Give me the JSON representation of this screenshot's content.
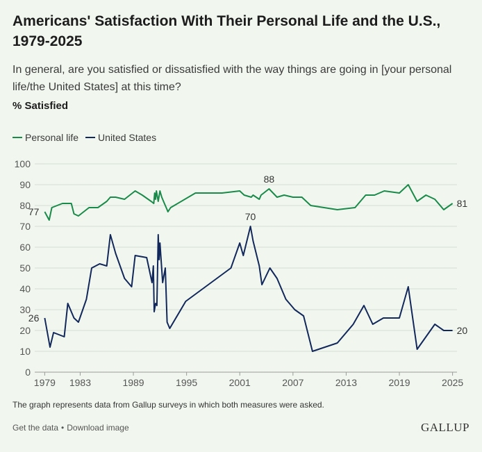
{
  "title": "Americans' Satisfaction With Their Personal Life and the U.S., 1979-2025",
  "subtitle": "In general, are you satisfied or dissatisfied with the way things are going in [your personal life/the United States] at this time?",
  "measure": "% Satisfied",
  "footnote": "The graph represents data from Gallup surveys in which both measures were asked.",
  "footer": {
    "get_data": "Get the data",
    "separator": "•",
    "download": "Download image",
    "brand": "GALLUP"
  },
  "colors": {
    "personal": "#1a8a4a",
    "us": "#12275a",
    "grid": "#d4dcd3",
    "axis": "#9a9a9a"
  },
  "chart_data": {
    "type": "line",
    "title": "Americans' Satisfaction With Their Personal Life and the U.S., 1979-2025",
    "ylabel": "% Satisfied",
    "xlabel": "",
    "xlim": [
      1978.5,
      2025.5
    ],
    "ylim": [
      0,
      100
    ],
    "yticks": [
      0,
      10,
      20,
      30,
      40,
      50,
      60,
      70,
      80,
      90,
      100
    ],
    "xticks": [
      1979,
      1983,
      1989,
      1995,
      2001,
      2007,
      2013,
      2019,
      2025
    ],
    "legend": "top-left",
    "series": [
      {
        "name": "Personal life",
        "color_key": "personal",
        "points": [
          [
            1979.0,
            77
          ],
          [
            1979.5,
            73
          ],
          [
            1979.8,
            79
          ],
          [
            1981.0,
            81
          ],
          [
            1982.0,
            81
          ],
          [
            1982.3,
            76
          ],
          [
            1982.8,
            75
          ],
          [
            1984.0,
            79
          ],
          [
            1985.0,
            79
          ],
          [
            1986.0,
            82
          ],
          [
            1986.4,
            84
          ],
          [
            1987.0,
            84
          ],
          [
            1988.0,
            83
          ],
          [
            1989.2,
            87
          ],
          [
            1990.0,
            85
          ],
          [
            1991.0,
            82
          ],
          [
            1991.3,
            81
          ],
          [
            1991.4,
            86
          ],
          [
            1991.5,
            83
          ],
          [
            1991.6,
            87
          ],
          [
            1991.8,
            82
          ],
          [
            1992.0,
            87
          ],
          [
            1992.2,
            84
          ],
          [
            1992.5,
            81
          ],
          [
            1992.8,
            78
          ],
          [
            1992.9,
            77
          ],
          [
            1993.2,
            79
          ],
          [
            1996.0,
            86
          ],
          [
            1999.0,
            86
          ],
          [
            2001.0,
            87
          ],
          [
            2001.5,
            85
          ],
          [
            2002.3,
            84
          ],
          [
            2002.5,
            85
          ],
          [
            2003.2,
            83
          ],
          [
            2003.4,
            85
          ],
          [
            2004.3,
            88
          ],
          [
            2005.2,
            84
          ],
          [
            2006.0,
            85
          ],
          [
            2007.0,
            84
          ],
          [
            2008.0,
            84
          ],
          [
            2009.0,
            80
          ],
          [
            2012.0,
            78
          ],
          [
            2014.0,
            79
          ],
          [
            2015.2,
            85
          ],
          [
            2016.2,
            85
          ],
          [
            2017.3,
            87
          ],
          [
            2019.0,
            86
          ],
          [
            2020.0,
            90
          ],
          [
            2021.0,
            82
          ],
          [
            2022.0,
            85
          ],
          [
            2023.0,
            83
          ],
          [
            2024.0,
            78
          ],
          [
            2025.0,
            81
          ]
        ]
      },
      {
        "name": "United States",
        "color_key": "us",
        "points": [
          [
            1979.0,
            26
          ],
          [
            1979.6,
            12
          ],
          [
            1980.0,
            19
          ],
          [
            1981.2,
            17
          ],
          [
            1981.6,
            33
          ],
          [
            1982.3,
            26
          ],
          [
            1982.8,
            24
          ],
          [
            1983.7,
            35
          ],
          [
            1984.3,
            50
          ],
          [
            1985.2,
            52
          ],
          [
            1986.0,
            51
          ],
          [
            1986.4,
            66
          ],
          [
            1987.0,
            57
          ],
          [
            1988.0,
            45
          ],
          [
            1988.8,
            41
          ],
          [
            1989.2,
            56
          ],
          [
            1990.5,
            55
          ],
          [
            1991.1,
            43
          ],
          [
            1991.25,
            51
          ],
          [
            1991.35,
            29
          ],
          [
            1991.5,
            33
          ],
          [
            1991.65,
            32
          ],
          [
            1991.8,
            66
          ],
          [
            1991.9,
            54
          ],
          [
            1992.0,
            62
          ],
          [
            1992.3,
            43
          ],
          [
            1992.6,
            50
          ],
          [
            1992.8,
            24
          ],
          [
            1993.1,
            21
          ],
          [
            1994.9,
            34
          ],
          [
            2000.0,
            50
          ],
          [
            2001.0,
            62
          ],
          [
            2001.4,
            56
          ],
          [
            2002.2,
            70
          ],
          [
            2002.5,
            63
          ],
          [
            2003.2,
            51
          ],
          [
            2003.5,
            42
          ],
          [
            2004.4,
            50
          ],
          [
            2005.2,
            45
          ],
          [
            2006.2,
            35
          ],
          [
            2007.2,
            30
          ],
          [
            2008.2,
            27
          ],
          [
            2009.2,
            10
          ],
          [
            2012.0,
            14
          ],
          [
            2013.8,
            23
          ],
          [
            2015.0,
            32
          ],
          [
            2016.0,
            23
          ],
          [
            2017.2,
            26
          ],
          [
            2019.0,
            26
          ],
          [
            2020.0,
            41
          ],
          [
            2021.0,
            11
          ],
          [
            2023.0,
            23
          ],
          [
            2024.0,
            20
          ],
          [
            2025.0,
            20
          ]
        ]
      }
    ],
    "annotations": [
      {
        "series": "Personal life",
        "x": 1979.0,
        "y": 77,
        "text": "77",
        "anchor": "end"
      },
      {
        "series": "Personal life",
        "x": 2004.3,
        "y": 88,
        "text": "88",
        "anchor": "middle"
      },
      {
        "series": "Personal life",
        "x": 2025.0,
        "y": 81,
        "text": "81",
        "anchor": "start"
      },
      {
        "series": "United States",
        "x": 1979.0,
        "y": 26,
        "text": "26",
        "anchor": "end"
      },
      {
        "series": "United States",
        "x": 2002.2,
        "y": 70,
        "text": "70",
        "anchor": "middle"
      },
      {
        "series": "United States",
        "x": 2025.0,
        "y": 20,
        "text": "20",
        "anchor": "start"
      }
    ]
  }
}
